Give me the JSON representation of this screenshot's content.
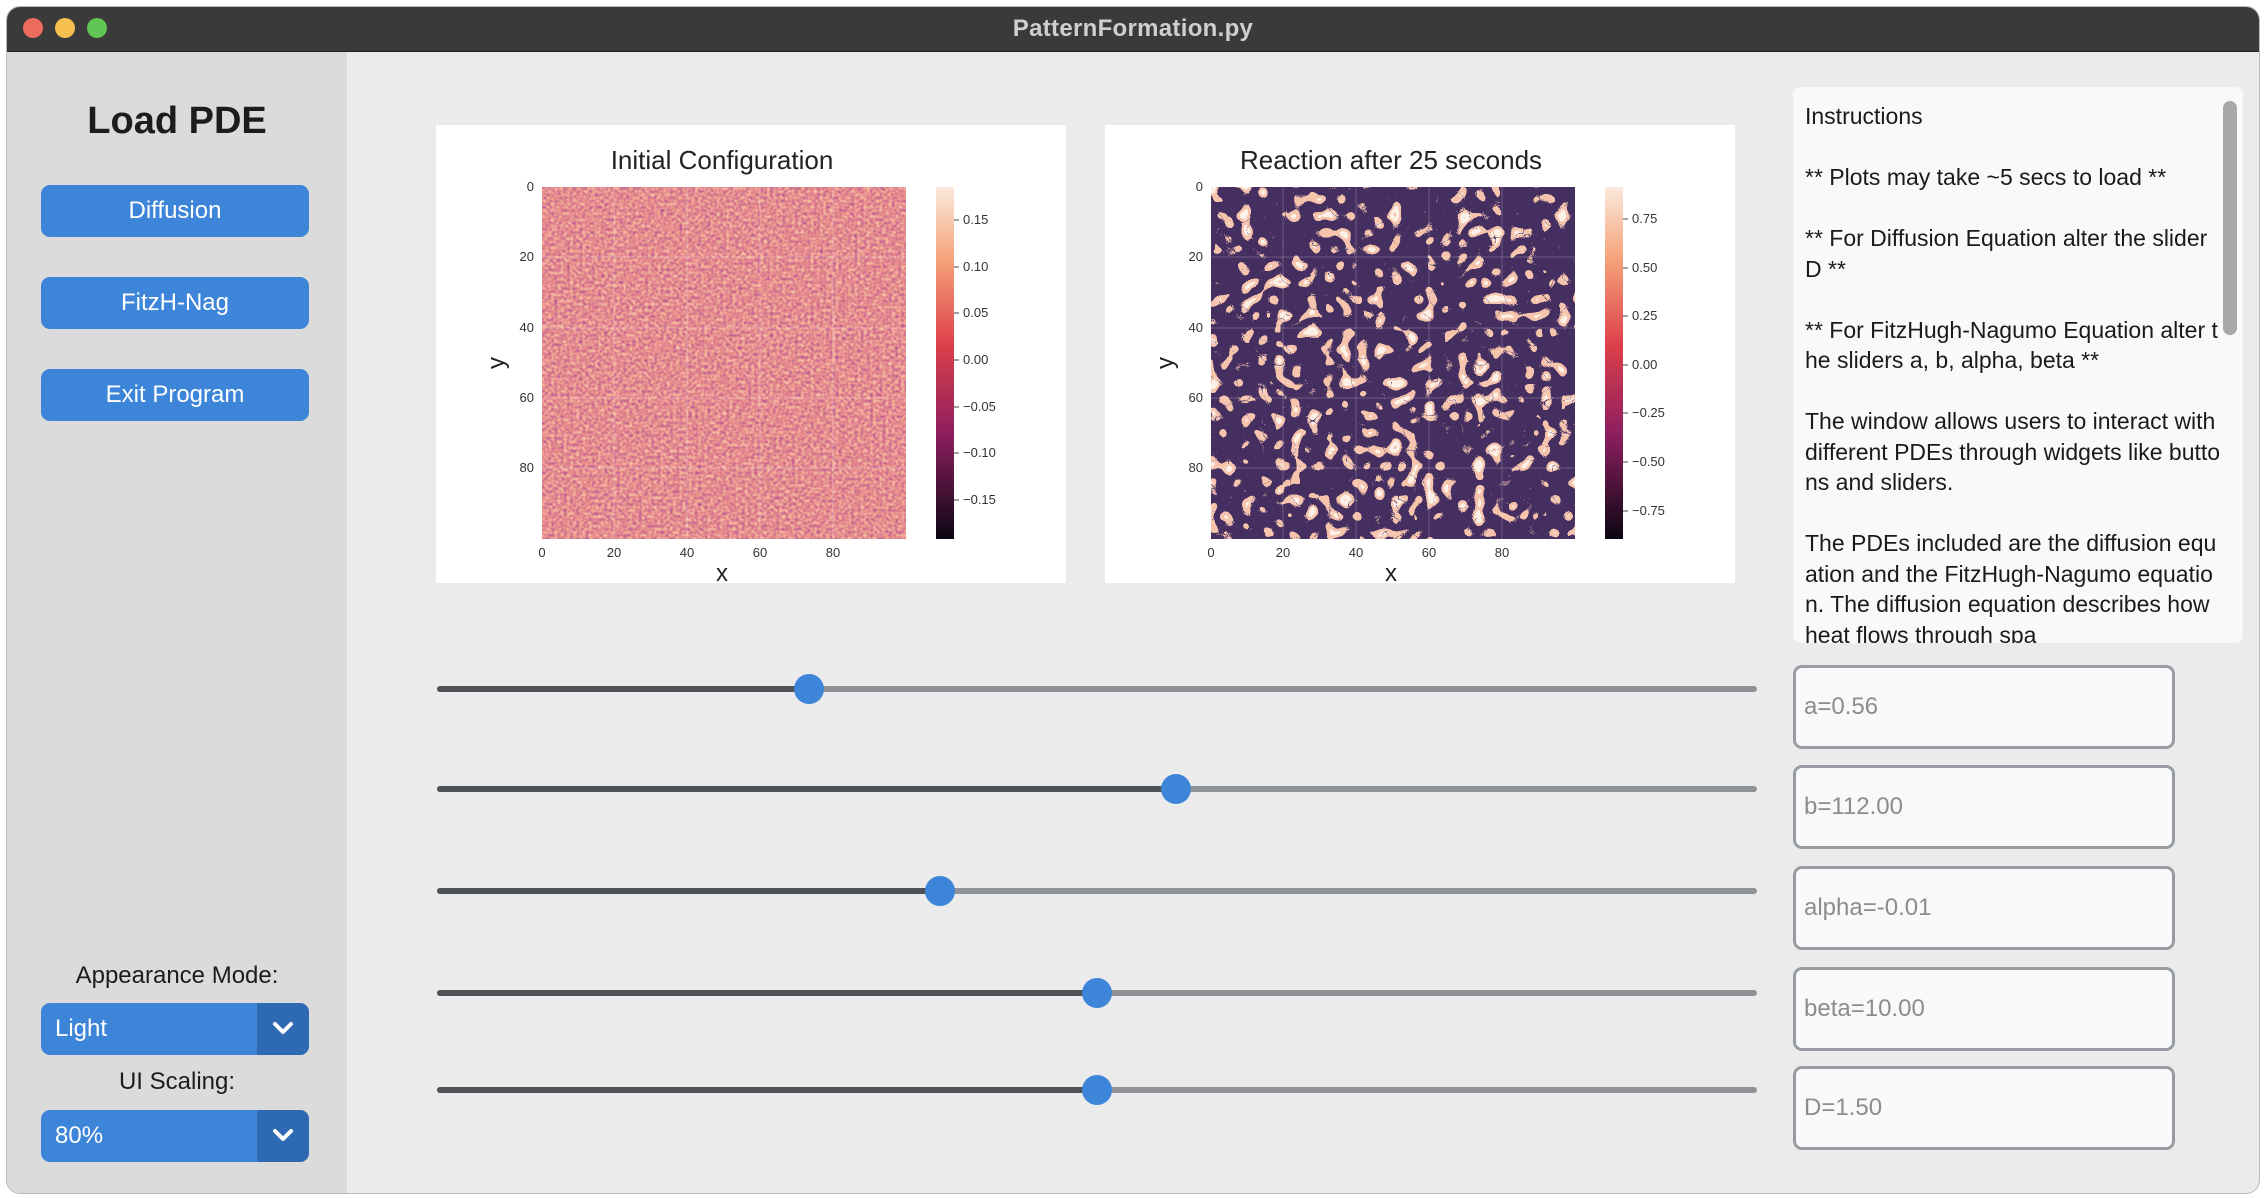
{
  "window": {
    "title": "PatternFormation.py"
  },
  "sidebar": {
    "title": "Load PDE",
    "buttons": [
      "Diffusion",
      "FitzH-Nag",
      "Exit Program"
    ],
    "appearance_label": "Appearance Mode:",
    "appearance_value": "Light",
    "scaling_label": "UI Scaling:",
    "scaling_value": "80%"
  },
  "plots": {
    "left": {
      "title": "Initial Configuration",
      "xlabel": "x",
      "ylabel": "y",
      "xticks": [
        "0",
        "20",
        "40",
        "60",
        "80"
      ],
      "yticks": [
        "0",
        "20",
        "40",
        "60",
        "80"
      ],
      "colorbar_ticks": [
        "0.15",
        "0.10",
        "0.05",
        "0.00",
        "−0.05",
        "−0.10",
        "−0.15"
      ]
    },
    "right": {
      "title": "Reaction after 25 seconds",
      "xlabel": "x",
      "ylabel": "y",
      "xticks": [
        "0",
        "20",
        "40",
        "60",
        "80"
      ],
      "yticks": [
        "0",
        "20",
        "40",
        "60",
        "80"
      ],
      "colorbar_ticks": [
        "0.75",
        "0.50",
        "0.25",
        "0.00",
        "−0.25",
        "−0.50",
        "−0.75"
      ]
    }
  },
  "instructions": {
    "text": "Instructions\n\n** Plots may take ~5 secs to load **\n\n** For Diffusion Equation alter the slider D **\n\n** For FitzHugh-Nagumo Equation alter the sliders a, b, alpha, beta **\n\nThe window allows users to interact with different PDEs through widgets like buttons and sliders.\n\nThe PDEs included are the diffusion equation and the FitzHugh-Nagumo equation. The diffusion equation describes how heat flows through spa"
  },
  "sliders": [
    {
      "name": "a",
      "fraction": 0.282,
      "entry": "a=0.56"
    },
    {
      "name": "b",
      "fraction": 0.56,
      "entry": "b=112.00"
    },
    {
      "name": "alpha",
      "fraction": 0.381,
      "entry": "alpha=-0.01"
    },
    {
      "name": "beta",
      "fraction": 0.5,
      "entry": "beta=10.00"
    },
    {
      "name": "D",
      "fraction": 0.5,
      "entry": "D=1.50"
    }
  ],
  "colors": {
    "accent": "#3d85d8",
    "accent_dark": "#2d6ab3",
    "sidebar": "#dbdbdb",
    "background": "#ebebeb"
  }
}
